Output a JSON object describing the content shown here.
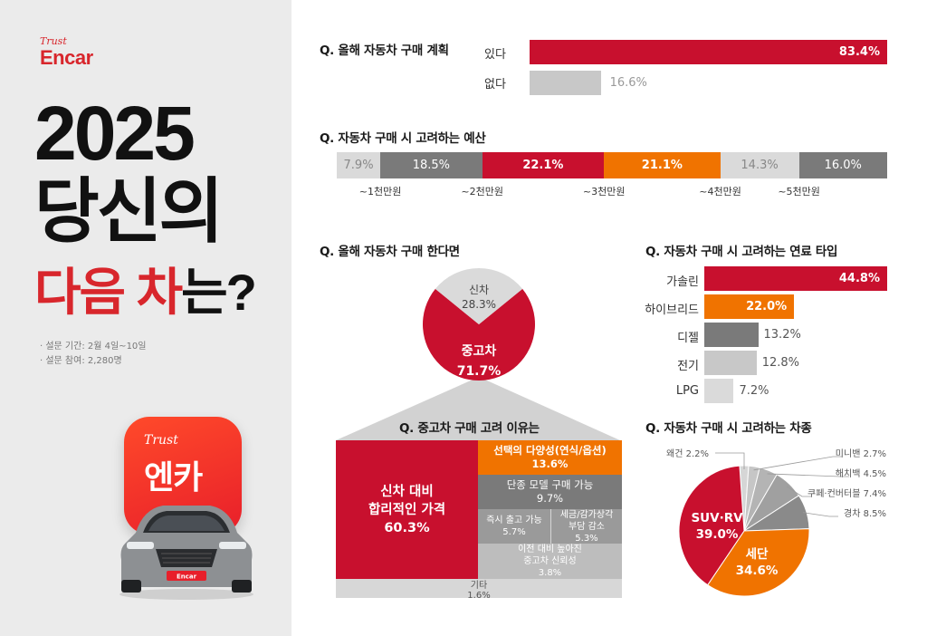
{
  "brand": {
    "trust": "Trust",
    "name": "Encar"
  },
  "headline": {
    "line1": "2025",
    "line2": "당신의",
    "line3_red": "다음 차",
    "line3_rest": "는?"
  },
  "survey": {
    "period": "· 설문 기간: 2월 4일~10일",
    "participants": "· 설문 참여: 2,280명"
  },
  "app_icon": {
    "trust": "Trust",
    "name": "엔카",
    "plate": "Encar"
  },
  "colors": {
    "red": "#c8102e",
    "orange": "#f07300",
    "dark_gray": "#7a7a7a",
    "mid_gray": "#9a9a9a",
    "light_gray": "#c8c8c8",
    "lighter_gray": "#dadada"
  },
  "chart_data": [
    {
      "id": "plan",
      "type": "bar",
      "title": "Q. 올해 자동차 구매 계획",
      "categories": [
        "있다",
        "없다"
      ],
      "values": [
        83.4,
        16.6
      ],
      "value_labels": [
        "83.4%",
        "16.6%"
      ],
      "colors": [
        "#c8102e",
        "#c8c8c8"
      ]
    },
    {
      "id": "budget",
      "type": "bar",
      "title": "Q. 자동차 구매 시 고려하는 예산",
      "values": [
        7.9,
        18.5,
        22.1,
        21.1,
        14.3,
        16.0
      ],
      "value_labels": [
        "7.9%",
        "18.5%",
        "22.1%",
        "21.1%",
        "14.3%",
        "16.0%"
      ],
      "colors": [
        "#dadada",
        "#7a7a7a",
        "#c8102e",
        "#f07300",
        "#dadada",
        "#7a7a7a"
      ],
      "text_colors": [
        "#888888",
        "#ffffff",
        "#ffffff",
        "#ffffff",
        "#888888",
        "#ffffff"
      ],
      "tick_labels": [
        "~1천만원",
        "~2천만원",
        "~3천만원",
        "~4천만원",
        "~5천만원"
      ]
    },
    {
      "id": "new_vs_used",
      "type": "pie",
      "title": "Q. 올해 자동차 구매 한다면",
      "categories": [
        "중고차",
        "신차"
      ],
      "values": [
        71.7,
        28.3
      ],
      "value_labels": [
        "71.7%",
        "28.3%"
      ],
      "colors": [
        "#c8102e",
        "#dadada"
      ]
    },
    {
      "id": "used_reasons",
      "type": "heatmap",
      "title": "Q. 중고차 구매 고려 이유는",
      "items": [
        {
          "label_lines": [
            "신차 대비",
            "합리적인 가격"
          ],
          "value": 60.3,
          "value_label": "60.3%",
          "color": "#c8102e"
        },
        {
          "label_lines": [
            "선택의 다양성(연식/옵션)"
          ],
          "value": 13.6,
          "value_label": "13.6%",
          "color": "#f07300"
        },
        {
          "label_lines": [
            "단종 모델 구매 가능"
          ],
          "value": 9.7,
          "value_label": "9.7%",
          "color": "#7a7a7a"
        },
        {
          "label_lines": [
            "즉시 출고 가능"
          ],
          "value": 5.7,
          "value_label": "5.7%",
          "color": "#9a9a9a"
        },
        {
          "label_lines": [
            "세금/감가상각",
            "부담 감소"
          ],
          "value": 5.3,
          "value_label": "5.3%",
          "color": "#9a9a9a"
        },
        {
          "label_lines": [
            "이전 대비 높아진",
            "중고차 신뢰성"
          ],
          "value": 3.8,
          "value_label": "3.8%",
          "color": "#bdbdbd"
        },
        {
          "label_lines": [
            "기타"
          ],
          "value": 1.6,
          "value_label": "1.6%",
          "color": "#d7d7d7"
        }
      ]
    },
    {
      "id": "fuel",
      "type": "bar",
      "title": "Q. 자동차 구매 시 고려하는 연료 타입",
      "categories": [
        "가솔린",
        "하이브리드",
        "디젤",
        "전기",
        "LPG"
      ],
      "values": [
        44.8,
        22.0,
        13.2,
        12.8,
        7.2
      ],
      "value_labels": [
        "44.8%",
        "22.0%",
        "13.2%",
        "12.8%",
        "7.2%"
      ],
      "colors": [
        "#c8102e",
        "#f07300",
        "#7a7a7a",
        "#c8c8c8",
        "#dadada"
      ]
    },
    {
      "id": "car_type",
      "type": "pie",
      "title": "Q. 자동차 구매 시 고려하는 차종",
      "categories": [
        "SUV·RV",
        "세단",
        "경차",
        "쿠페·컨버터블",
        "해치백",
        "미니밴",
        "왜건"
      ],
      "values": [
        39.0,
        34.6,
        8.5,
        7.4,
        4.5,
        2.7,
        2.2
      ],
      "value_labels": [
        "39.0%",
        "34.6%",
        "8.5%",
        "7.4%",
        "4.5%",
        "2.7%",
        "2.2%"
      ],
      "colors": [
        "#c8102e",
        "#f07300",
        "#8a8a8a",
        "#a0a0a0",
        "#b4b4b4",
        "#c6c6c6",
        "#d6d6d6"
      ]
    }
  ]
}
